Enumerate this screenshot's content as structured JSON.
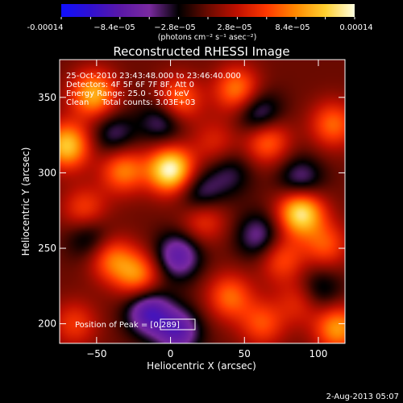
{
  "colorbar": {
    "ticks": [
      "-0.00014",
      "−8.4e−05",
      "−2.8e−05",
      "2.8e−05",
      "8.4e−05",
      "0.00014"
    ],
    "units": "(photons cm⁻² s⁻¹ asec⁻²)",
    "colors": [
      "#1010ff",
      "#3010d0",
      "#5a18a8",
      "#7a2aa0",
      "#000000",
      "#6a0a00",
      "#c01000",
      "#ff3800",
      "#ff8a00",
      "#ffd030",
      "#ffffe0"
    ]
  },
  "annotations": {
    "time_range": "25-Oct-2010 23:43:48.000 to 23:46:40.000",
    "detectors": "Detectors: 4F 5F 6F 7F 8F, Att 0",
    "energy": "Energy Range: 25.0 - 50.0 keV",
    "clean": "Clean     Total counts: 3.03E+03",
    "peak_label": "Position of Peak = ",
    "peak_value": "[0,289]"
  },
  "footer": {
    "date": "2-Aug-2013 05:07"
  },
  "chart_data": {
    "type": "heatmap",
    "title": "Reconstructed RHESSI Image",
    "xlabel": "Heliocentric X (arcsec)",
    "ylabel": "Heliocentric Y (arcsec)",
    "xlim": [
      -75,
      118
    ],
    "ylim": [
      187,
      375
    ],
    "xticks": [
      -50,
      0,
      50,
      100
    ],
    "yticks": [
      200,
      250,
      300,
      350
    ],
    "colorbar_range": [
      -0.00014,
      0.00014
    ],
    "peak_position": [
      0,
      289
    ],
    "blobs": [
      {
        "x": 0,
        "y": 302,
        "value": 0.00014
      },
      {
        "x": 88,
        "y": 274,
        "value": 0.00013
      },
      {
        "x": -70,
        "y": 318,
        "value": 0.00011
      },
      {
        "x": -52,
        "y": 352,
        "value": 0.0001
      },
      {
        "x": -32,
        "y": 302,
        "value": 8e-05
      },
      {
        "x": 5,
        "y": 348,
        "value": 8e-05
      },
      {
        "x": 45,
        "y": 355,
        "value": 8e-05
      },
      {
        "x": 65,
        "y": 322,
        "value": 8e-05
      },
      {
        "x": 110,
        "y": 332,
        "value": 7e-05
      },
      {
        "x": 22,
        "y": 270,
        "value": 6e-05
      },
      {
        "x": -58,
        "y": 275,
        "value": 6e-05
      },
      {
        "x": -40,
        "y": 243,
        "value": 7e-05
      },
      {
        "x": -22,
        "y": 232,
        "value": 8e-05
      },
      {
        "x": 75,
        "y": 243,
        "value": 6e-05
      },
      {
        "x": 105,
        "y": 252,
        "value": 6e-05
      },
      {
        "x": 40,
        "y": 218,
        "value": 7e-05
      },
      {
        "x": 62,
        "y": 200,
        "value": 6e-05
      },
      {
        "x": -65,
        "y": 200,
        "value": 5e-05
      },
      {
        "x": 113,
        "y": 197,
        "value": 9e-05
      },
      {
        "x": 88,
        "y": 215,
        "value": 5e-05
      },
      {
        "x": 30,
        "y": 320,
        "value": 4e-05
      },
      {
        "x": 60,
        "y": 338,
        "value": -7e-05
      },
      {
        "x": 5,
        "y": 245,
        "value": -8e-05
      },
      {
        "x": -15,
        "y": 208,
        "value": -9e-05
      },
      {
        "x": 20,
        "y": 285,
        "value": -6e-05
      },
      {
        "x": 88,
        "y": 295,
        "value": -6e-05
      },
      {
        "x": -55,
        "y": 258,
        "value": -5e-05
      },
      {
        "x": -5,
        "y": 335,
        "value": -6e-05
      },
      {
        "x": 60,
        "y": 258,
        "value": -6e-05
      },
      {
        "x": 5,
        "y": 195,
        "value": -8e-05
      },
      {
        "x": 100,
        "y": 222,
        "value": -5e-05
      },
      {
        "x": -38,
        "y": 325,
        "value": -5e-05
      },
      {
        "x": 40,
        "y": 300,
        "value": -4e-05
      }
    ]
  }
}
